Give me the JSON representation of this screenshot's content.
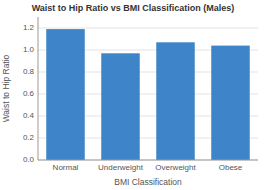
{
  "chart_data": {
    "type": "bar",
    "title": "Waist to Hip Ratio vs BMI Classification (Males)",
    "xlabel": "BMI Classification",
    "ylabel": "Waist to Hip Ratio",
    "categories": [
      "Normal",
      "Underweight",
      "Overweight",
      "Obese"
    ],
    "values": [
      1.19,
      0.97,
      1.07,
      1.04
    ],
    "color": "#3d85c8",
    "ylim": [
      0,
      1.3
    ],
    "yticks": [
      {
        "value": 0,
        "label": "0.0"
      },
      0.2,
      0.4,
      0.6,
      0.8,
      {
        "value": 1.0,
        "label": "1.0"
      },
      1.2
    ],
    "grid": true
  }
}
